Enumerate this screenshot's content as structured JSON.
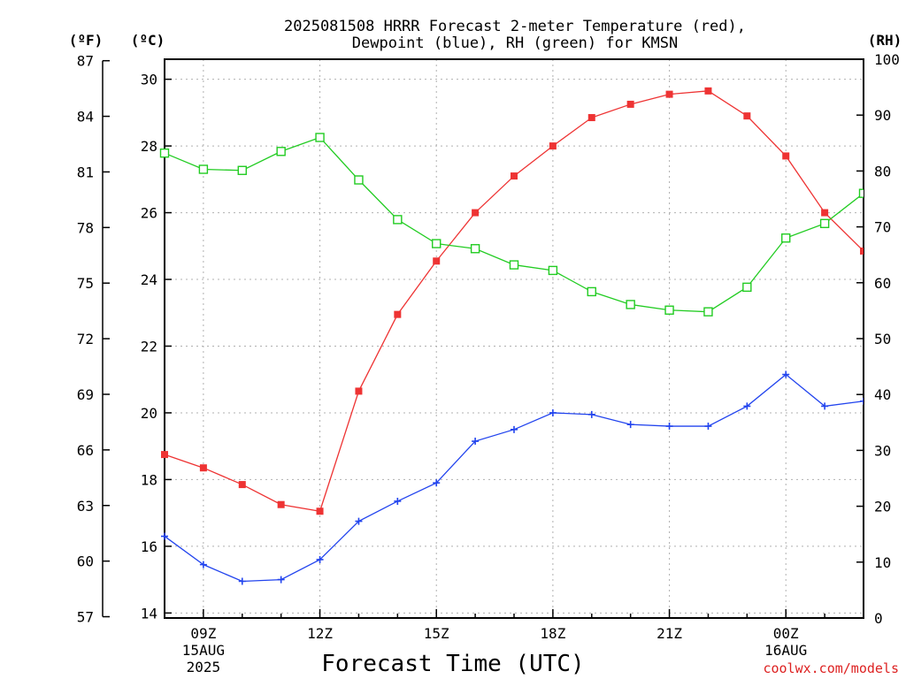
{
  "chart_data": {
    "type": "line",
    "title_line1": "2025081508 HRRR Forecast 2-meter Temperature (red),",
    "title_line2": "Dewpoint (blue), RH (green) for KMSN",
    "xlabel": "Forecast Time (UTC)",
    "left_unit_f": "(ºF)",
    "left_unit_c": "(ºC)",
    "right_unit": "(RH)",
    "credit": "coolwx.com/models",
    "x": [
      "08Z",
      "09Z",
      "10Z",
      "11Z",
      "12Z",
      "13Z",
      "14Z",
      "15Z",
      "16Z",
      "17Z",
      "18Z",
      "19Z",
      "20Z",
      "21Z",
      "22Z",
      "23Z",
      "00Z",
      "01Z",
      "02Z"
    ],
    "x_ticks": [
      {
        "label": "09Z",
        "sub1": "15AUG",
        "sub2": "2025"
      },
      {
        "label": "12Z",
        "sub1": "",
        "sub2": ""
      },
      {
        "label": "15Z",
        "sub1": "",
        "sub2": ""
      },
      {
        "label": "18Z",
        "sub1": "",
        "sub2": ""
      },
      {
        "label": "21Z",
        "sub1": "",
        "sub2": ""
      },
      {
        "label": "00Z",
        "sub1": "16AUG",
        "sub2": ""
      }
    ],
    "ylim_c": [
      13.85,
      30.6
    ],
    "yticks_c": [
      "14",
      "16",
      "18",
      "20",
      "22",
      "24",
      "26",
      "28",
      "30"
    ],
    "yticks_f": [
      "57",
      "60",
      "63",
      "66",
      "69",
      "72",
      "75",
      "78",
      "81",
      "84",
      "87"
    ],
    "ylim_rh": [
      0,
      100
    ],
    "yticks_rh": [
      "0",
      "10",
      "20",
      "30",
      "40",
      "50",
      "60",
      "70",
      "80",
      "90",
      "100"
    ],
    "series": [
      {
        "name": "Temperature",
        "unit": "C",
        "color": "#ee3333",
        "marker": "filled-square",
        "values": [
          18.75,
          18.35,
          17.85,
          17.25,
          17.05,
          20.65,
          22.95,
          24.55,
          26.0,
          27.1,
          28.0,
          28.85,
          29.25,
          29.55,
          29.65,
          28.9,
          27.7,
          26.0,
          24.85
        ]
      },
      {
        "name": "Dewpoint",
        "unit": "C",
        "color": "#2244ee",
        "marker": "plus",
        "values": [
          16.3,
          15.45,
          14.95,
          15.0,
          15.6,
          16.75,
          17.35,
          17.9,
          19.15,
          19.5,
          20.0,
          19.95,
          19.65,
          19.6,
          19.6,
          20.2,
          21.15,
          20.2,
          20.35
        ]
      },
      {
        "name": "RH",
        "unit": "%",
        "color": "#22cc22",
        "marker": "open-square",
        "values": [
          83.2,
          80.3,
          80.1,
          83.5,
          86.0,
          78.4,
          71.3,
          67.0,
          66.1,
          63.2,
          62.2,
          58.4,
          56.1,
          55.1,
          54.8,
          59.2,
          68.0,
          70.6,
          76.0
        ]
      }
    ]
  }
}
